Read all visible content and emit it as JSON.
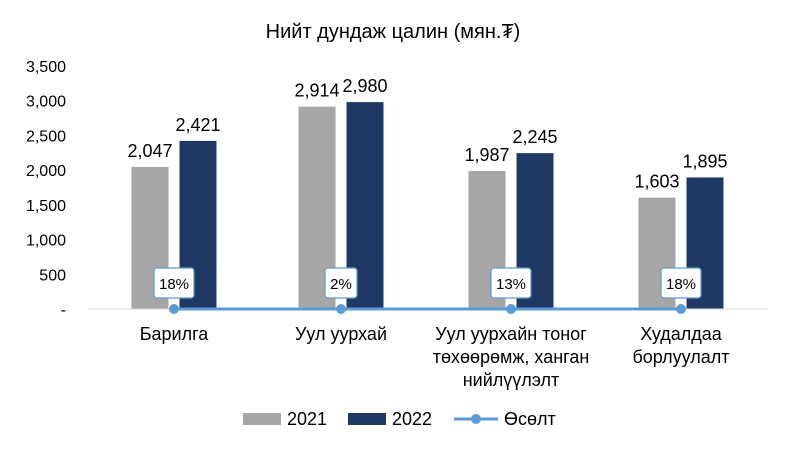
{
  "chart_data": {
    "type": "bar",
    "title": "Нийт дундаж цалин (мян.₮)",
    "categories": [
      [
        "Барилга"
      ],
      [
        "Уул уурхай"
      ],
      [
        "Уул уурхайн тоног",
        "төхөөрөмж, ханган",
        "нийлүүлэлт"
      ],
      [
        "Худалдаа",
        "борлуулалт"
      ]
    ],
    "series": [
      {
        "name": "2021",
        "values": [
          2047,
          2914,
          1987,
          1603
        ],
        "labels": [
          "2,047",
          "2,914",
          "1,987",
          "1,603"
        ],
        "color": "#A6A6A6"
      },
      {
        "name": "2022",
        "values": [
          2421,
          2980,
          2245,
          1895
        ],
        "labels": [
          "2,421",
          "2,980",
          "2,245",
          "1,895"
        ],
        "color": "#1F3864"
      }
    ],
    "growth": {
      "name": "Өсөлт",
      "labels": [
        "18%",
        "2%",
        "13%",
        "18%"
      ],
      "color": "#5B9BD5"
    },
    "ylim": [
      0,
      3500
    ],
    "yticks": [
      0,
      500,
      1000,
      1500,
      2000,
      2500,
      3000,
      3500
    ],
    "ytick_labels": [
      "-",
      "500",
      "1,000",
      "1,500",
      "2,000",
      "2,500",
      "3,000",
      "3,500"
    ],
    "legend_position": "bottom",
    "grid": false
  }
}
